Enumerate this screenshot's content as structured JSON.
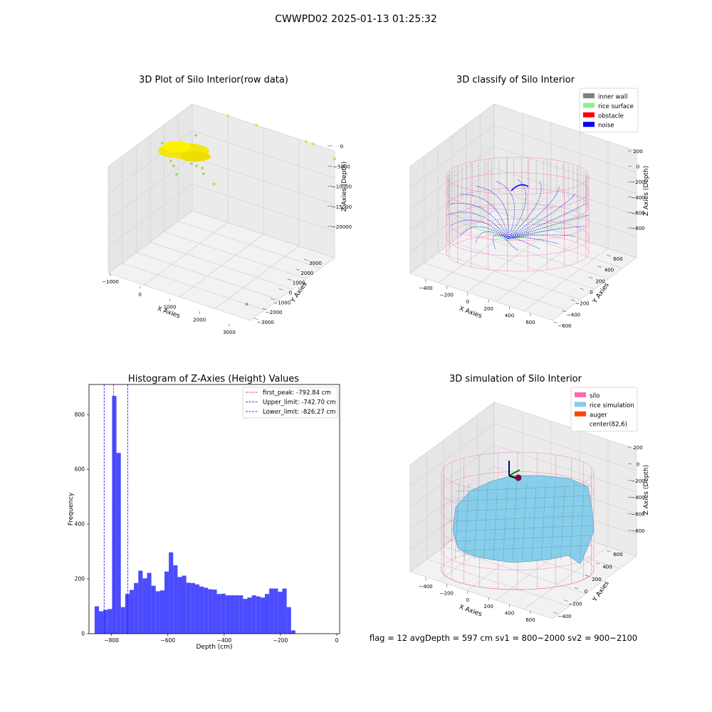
{
  "figure": {
    "suptitle": "CWWPD02 2025-01-13 01:25:32",
    "status_line": "flag = 12   avgDepth = 597 cm  sv1 = 800~2000  sv2 = 900~2100"
  },
  "chart_data": [
    {
      "type": "scatter",
      "projection": "3d",
      "title": "3D Plot of Silo Interior(row data)",
      "xlabel": "X Axies",
      "ylabel": "Y Axies",
      "zlabel": "Z Axies (Depth)",
      "xticks": [
        "−1000",
        "0",
        "1000",
        "2000",
        "3000"
      ],
      "yticks": [
        "−3000",
        "−2000",
        "−1000",
        "0",
        "1000",
        "2000",
        "3000"
      ],
      "zticks": [
        "0",
        "−5000",
        "−10000",
        "−15000",
        "−20000"
      ],
      "points": [
        {
          "x": 0,
          "y": 3000,
          "z": 0,
          "color": "#d4e84a"
        },
        {
          "x": 800,
          "y": 3000,
          "z": 0,
          "color": "#d4e84a"
        },
        {
          "x": 2200,
          "y": 3000,
          "z": 0,
          "color": "#d4e84a"
        },
        {
          "x": 2400,
          "y": 3000,
          "z": 0,
          "color": "#d4e84a"
        },
        {
          "x": 3000,
          "y": 3000,
          "z": -1500,
          "color": "#c8e050"
        },
        {
          "x": 400,
          "y": 1000,
          "z": -8000,
          "color": "#c5dc30"
        },
        {
          "x": 2500,
          "y": -2000,
          "z": -20000,
          "color": "#9a9a9a"
        }
      ],
      "cluster": {
        "label": "rice surface (raw)",
        "color": "#f2e600"
      }
    },
    {
      "type": "scatter",
      "projection": "3d",
      "title": "3D classify of Silo Interior",
      "xlabel": "X Axies",
      "ylabel": "Y Axies",
      "zlabel": "Z Axies (Depth)",
      "xticks": [
        "−400",
        "−200",
        "0",
        "200",
        "400",
        "600"
      ],
      "yticks": [
        "−600",
        "−400",
        "−200",
        "0",
        "200",
        "400",
        "600"
      ],
      "zticks": [
        "200",
        "0",
        "−200",
        "−400",
        "−600",
        "−800"
      ],
      "legend": [
        {
          "label": "inner wall",
          "color": "#808080"
        },
        {
          "label": "rice surface",
          "color": "#90ee90"
        },
        {
          "label": "obstacle",
          "color": "#ff0000"
        },
        {
          "label": "noise",
          "color": "#0000ff"
        }
      ],
      "legend_placement": "upper right"
    },
    {
      "type": "bar",
      "title": "Histogram of Z-Axies (Height) Values",
      "xlabel": "Depth (cm)",
      "ylabel": "Frequency",
      "xlim": [
        -880,
        10
      ],
      "ylim": [
        0,
        910
      ],
      "xticks": [
        -800,
        -600,
        -400,
        -200,
        0
      ],
      "yticks": [
        0,
        200,
        400,
        600,
        800
      ],
      "bin_start": -860,
      "bin_width": 15.5,
      "bar_color": "#4b4bff",
      "values": [
        100,
        82,
        87,
        90,
        868,
        660,
        97,
        145,
        160,
        185,
        230,
        202,
        222,
        175,
        155,
        158,
        227,
        297,
        250,
        207,
        212,
        186,
        185,
        180,
        172,
        168,
        162,
        161,
        145,
        146,
        140,
        140,
        140,
        140,
        127,
        132,
        140,
        136,
        132,
        145,
        165,
        165,
        153,
        165,
        97,
        12
      ],
      "lines": [
        {
          "label": "first_peak: -792.84 cm",
          "x": -792.84,
          "color": "#ff0000"
        },
        {
          "label": "Upper_limit: -742.70 cm",
          "x": -742.7,
          "color": "#0000ff"
        },
        {
          "label": "Lower_limit: -826.27 cm",
          "x": -826.27,
          "color": "#0000ff"
        }
      ],
      "legend_placement": "upper right"
    },
    {
      "type": "surface",
      "projection": "3d",
      "title": "3D simulation of Silo Interior",
      "xlabel": "X Axies",
      "ylabel": "Y Axies",
      "zlabel": "Z Axies (Depth)",
      "xticks": [
        "−400",
        "−200",
        "0",
        "200",
        "400",
        "600"
      ],
      "yticks": [
        "−400",
        "−200",
        "0",
        "200",
        "400",
        "600"
      ],
      "zticks": [
        "200",
        "0",
        "−200",
        "−400",
        "−600",
        "−800"
      ],
      "legend": [
        {
          "label": "silo",
          "color": "#ff69b4"
        },
        {
          "label": "rice simulation",
          "color": "#87ceeb"
        },
        {
          "label": "auger",
          "color": "#ff4500"
        },
        {
          "label": "center(82,6)",
          "color": "#ffffff"
        }
      ],
      "legend_placement": "upper right"
    }
  ]
}
